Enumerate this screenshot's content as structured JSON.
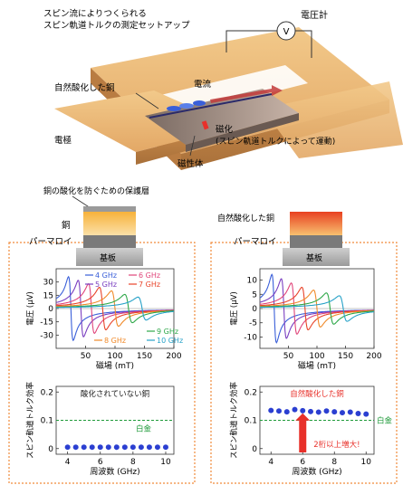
{
  "setup": {
    "title_line1": "スピン流によりつくられる",
    "title_line2": "スピン軌道トルクの測定セットアップ",
    "voltmeter_label": "電圧計",
    "voltmeter_symbol": "V",
    "oxidized_cu_label": "自然酸化した銅",
    "current_label": "電流",
    "magnetization_label": "磁化",
    "magnetization_sub": "(スピン軌道トルクによって運動)",
    "electrode_label": "電極",
    "magnetic_label": "磁性体"
  },
  "stack_left": {
    "caption": "銅の酸化を防ぐための保護層",
    "layer_cu": "銅",
    "layer_py": "パーマロイ",
    "substrate": "基板"
  },
  "stack_right": {
    "caption": "自然酸化した銅",
    "layer_py": "パーマロイ",
    "substrate": "基板"
  },
  "colors": {
    "4 GHz": "#3a5fd9",
    "5 GHz": "#7a3fc0",
    "6 GHz": "#e0457a",
    "7 GHz": "#e8442a",
    "8 GHz": "#f08a2a",
    "9 GHz": "#2fa84a",
    "10 GHz": "#27a2c8",
    "points": "#2b3fd1",
    "platinum": "#1f9a3a",
    "highlight": "#e8302a",
    "orange": "#f5a020",
    "dashed_box": "#f08a3a"
  },
  "chart_data": [
    {
      "type": "line",
      "panel": "voltage-left",
      "xlabel": "磁場 (mT)",
      "ylabel": "電圧 (μV)",
      "xlim": [
        0,
        200
      ],
      "ylim": [
        -45,
        45
      ],
      "xticks": [
        50,
        100,
        150,
        200
      ],
      "yticks": [
        -30,
        -15,
        0,
        15,
        30
      ],
      "legend": [
        "4 GHz",
        "5 GHz",
        "6 GHz",
        "7 GHz",
        "8 GHz",
        "9 GHz",
        "10 GHz"
      ],
      "series": [
        {
          "name": "4 GHz",
          "h0": 25,
          "amp": 36,
          "width": 4
        },
        {
          "name": "5 GHz",
          "h0": 42,
          "amp": 32,
          "width": 4.5
        },
        {
          "name": "6 GHz",
          "h0": 60,
          "amp": 28,
          "width": 5
        },
        {
          "name": "7 GHz",
          "h0": 79,
          "amp": 24,
          "width": 5.5
        },
        {
          "name": "8 GHz",
          "h0": 100,
          "amp": 20,
          "width": 6
        },
        {
          "name": "9 GHz",
          "h0": 123,
          "amp": 16,
          "width": 6.5
        },
        {
          "name": "10 GHz",
          "h0": 146,
          "amp": 13,
          "width": 7
        }
      ]
    },
    {
      "type": "line",
      "panel": "voltage-right",
      "xlabel": "磁場 (mT)",
      "ylabel": "電圧 (μV)",
      "xlim": [
        0,
        200
      ],
      "ylim": [
        -14,
        14
      ],
      "xticks": [
        50,
        100,
        150,
        200
      ],
      "yticks": [
        -10,
        -5,
        0,
        5,
        10
      ],
      "series": [
        {
          "name": "4 GHz",
          "h0": 25,
          "amp": 12,
          "width": 4
        },
        {
          "name": "5 GHz",
          "h0": 42,
          "amp": 10.5,
          "width": 4.5
        },
        {
          "name": "6 GHz",
          "h0": 60,
          "amp": 9,
          "width": 5
        },
        {
          "name": "7 GHz",
          "h0": 79,
          "amp": 7.5,
          "width": 5.5
        },
        {
          "name": "8 GHz",
          "h0": 100,
          "amp": 6.5,
          "width": 6
        },
        {
          "name": "9 GHz",
          "h0": 123,
          "amp": 5.5,
          "width": 6.5
        },
        {
          "name": "10 GHz",
          "h0": 146,
          "amp": 4.5,
          "width": 7
        }
      ]
    },
    {
      "type": "scatter",
      "panel": "efficiency-left",
      "title": "酸化されていない銅",
      "xlabel": "周波数 (GHz)",
      "ylabel": "スピン軌道トルク効率",
      "xlim": [
        3.3,
        10.5
      ],
      "ylim": [
        -0.02,
        0.22
      ],
      "xticks": [
        4,
        6,
        8,
        10
      ],
      "yticks": [
        0,
        0.1,
        0.2
      ],
      "reference_label": "白金",
      "reference_value": 0.1,
      "x": [
        4,
        4.5,
        5,
        5.5,
        6,
        6.5,
        7,
        7.5,
        8,
        8.5,
        9,
        9.5,
        10
      ],
      "y": [
        0.005,
        0.005,
        0.005,
        0.005,
        0.005,
        0.005,
        0.005,
        0.005,
        0.005,
        0.005,
        0.005,
        0.005,
        0.005
      ]
    },
    {
      "type": "scatter",
      "panel": "efficiency-right",
      "title": "自然酸化した銅",
      "annotation": "2桁以上増大!",
      "xlabel": "周波数 (GHz)",
      "ylabel": "スピン軌道トルク効率",
      "xlim": [
        3.3,
        10.5
      ],
      "ylim": [
        -0.02,
        0.22
      ],
      "xticks": [
        4,
        6,
        8,
        10
      ],
      "yticks": [
        0,
        0.1,
        0.2
      ],
      "reference_label": "白金",
      "reference_value": 0.1,
      "x": [
        4,
        4.5,
        5,
        5.5,
        6,
        6.5,
        7,
        7.5,
        8,
        8.5,
        9,
        9.5,
        10
      ],
      "y": [
        0.135,
        0.133,
        0.13,
        0.138,
        0.134,
        0.131,
        0.129,
        0.133,
        0.13,
        0.127,
        0.129,
        0.124,
        0.122
      ]
    }
  ]
}
